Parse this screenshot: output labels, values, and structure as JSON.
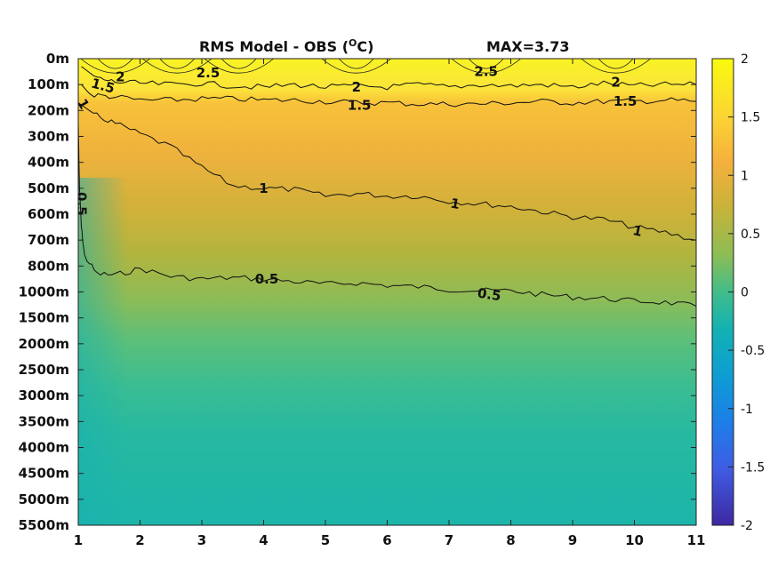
{
  "chart_data": {
    "type": "heatmap",
    "title": "RMS Model - OBS (",
    "title_unit_sup": "O",
    "title_unit_end": "C)",
    "max_label": "MAX=3.73",
    "x_ticks": [
      "1",
      "2",
      "3",
      "4",
      "5",
      "6",
      "7",
      "8",
      "9",
      "10",
      "11"
    ],
    "xlim": [
      1,
      11
    ],
    "y_ticks": [
      "0m",
      "100m",
      "200m",
      "300m",
      "400m",
      "500m",
      "600m",
      "700m",
      "800m",
      "1000m",
      "1500m",
      "2000m",
      "2500m",
      "3000m",
      "3500m",
      "4000m",
      "4500m",
      "5000m",
      "5500m"
    ],
    "y_axis_reversed": true,
    "colorbar": {
      "ticks": [
        "2",
        "1.5",
        "1",
        "0.5",
        "0",
        "-0.5",
        "-1",
        "-1.5",
        "-2"
      ],
      "range": [
        -2,
        2
      ],
      "colormap": "parula"
    },
    "contour_levels": [
      0.5,
      1,
      1.5,
      2,
      2.5
    ],
    "contours": [
      {
        "level": "0.5",
        "x": [
          1.0,
          1.02,
          1.05,
          1.1,
          1.3,
          1.6,
          2.0,
          2.5,
          3.0,
          3.5,
          4.0,
          4.5,
          5.0,
          5.5,
          6.0,
          6.5,
          7.0,
          7.5,
          8.0,
          8.5,
          9.0,
          9.5,
          10.0,
          10.5,
          11.0
        ],
        "y_index": [
          2.5,
          5.0,
          6.5,
          7.6,
          8.3,
          8.35,
          8.1,
          8.4,
          8.5,
          8.45,
          8.5,
          8.6,
          8.7,
          8.65,
          8.75,
          8.8,
          8.9,
          8.95,
          8.95,
          9.1,
          9.2,
          9.25,
          9.35,
          9.4,
          9.55
        ]
      },
      {
        "level": "1",
        "x": [
          1.0,
          1.3,
          1.6,
          2.0,
          2.5,
          3.0,
          3.5,
          4.0,
          4.5,
          5.0,
          5.5,
          6.0,
          6.5,
          7.0,
          7.5,
          8.0,
          8.5,
          9.0,
          9.5,
          10.0,
          10.5,
          11.0
        ],
        "y_index": [
          1.7,
          2.2,
          2.5,
          2.9,
          3.4,
          4.2,
          4.9,
          5.0,
          5.05,
          5.3,
          5.2,
          5.3,
          5.3,
          5.5,
          5.6,
          5.7,
          5.9,
          6.1,
          6.2,
          6.5,
          6.7,
          7.0
        ]
      },
      {
        "level": "1.5",
        "x": [
          1.05,
          1.2,
          1.5,
          2.0,
          2.5,
          3.0,
          3.5,
          4.0,
          4.5,
          5.0,
          5.5,
          6.0,
          6.5,
          7.0,
          7.5,
          8.0,
          8.5,
          9.0,
          9.5,
          10.0,
          10.5,
          11.0
        ],
        "y_index": [
          1.0,
          1.4,
          1.45,
          1.6,
          1.6,
          1.55,
          1.55,
          1.6,
          1.6,
          1.65,
          1.7,
          1.7,
          1.75,
          1.75,
          1.75,
          1.7,
          1.65,
          1.7,
          1.65,
          1.65,
          1.6,
          1.65
        ]
      },
      {
        "level": "2",
        "x": [
          1.05,
          1.3,
          1.6,
          2.0,
          2.5,
          3.0,
          3.5,
          4.0,
          4.5,
          5.0,
          5.5,
          6.0,
          6.5,
          7.0,
          7.5,
          8.0,
          8.5,
          9.0,
          9.5,
          10.0,
          10.5,
          11.0
        ],
        "y_index": [
          0.3,
          0.75,
          0.9,
          0.95,
          1.0,
          0.95,
          1.05,
          1.1,
          1.0,
          1.1,
          1.05,
          1.1,
          1.0,
          1.1,
          1.0,
          1.05,
          1.0,
          1.1,
          0.95,
          1.05,
          1.0,
          1.0
        ]
      }
    ],
    "contour_labels": [
      {
        "text": "0.5",
        "x": 4.05,
        "y_index": 8.5,
        "angle": 0
      },
      {
        "text": "0.5",
        "x": 7.65,
        "y_index": 9.1,
        "angle": 8
      },
      {
        "text": "1",
        "x": 4.0,
        "y_index": 5.0,
        "angle": 0
      },
      {
        "text": "1",
        "x": 7.1,
        "y_index": 5.6,
        "angle": 10
      },
      {
        "text": "1",
        "x": 10.05,
        "y_index": 6.65,
        "angle": 12
      },
      {
        "text": "1.5",
        "x": 5.55,
        "y_index": 1.8,
        "angle": 0
      },
      {
        "text": "1.5",
        "x": 9.85,
        "y_index": 1.65,
        "angle": 0
      },
      {
        "text": "1.5",
        "x": 1.4,
        "y_index": 1.05,
        "angle": 15
      },
      {
        "text": "2",
        "x": 5.5,
        "y_index": 1.1,
        "angle": 0
      },
      {
        "text": "2",
        "x": 9.7,
        "y_index": 0.9,
        "angle": 0
      },
      {
        "text": "2",
        "x": 1.68,
        "y_index": 0.7,
        "angle": 0
      },
      {
        "text": "2.5",
        "x": 3.1,
        "y_index": 0.55,
        "angle": 0
      },
      {
        "text": "2.5",
        "x": 7.6,
        "y_index": 0.5,
        "angle": 0
      },
      {
        "text": "1",
        "x": 1.08,
        "y_index": 1.75,
        "angle": 60
      },
      {
        "text": "0.5",
        "x": 1.05,
        "y_index": 5.6,
        "angle": 90
      }
    ],
    "approx_field_by_depth_index": [
      2.8,
      2.0,
      1.35,
      1.25,
      1.2,
      1.15,
      1.05,
      0.95,
      0.75,
      0.6,
      0.45,
      0.35,
      0.3,
      0.25,
      0.22,
      0.18,
      0.15,
      0.12,
      0.1
    ]
  }
}
